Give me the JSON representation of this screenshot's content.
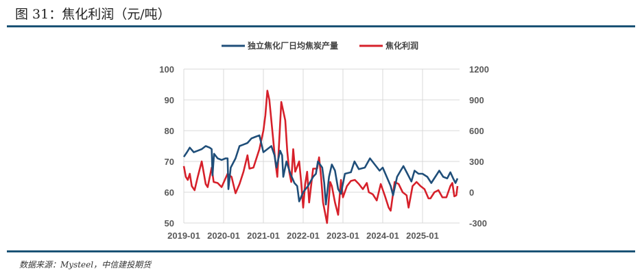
{
  "title": "图 31：焦化利润（元/吨）",
  "source": "数据来源：Mysteel，中信建投期货",
  "colors": {
    "production": "#1f4e79",
    "profit": "#d6202a",
    "rule": "#1a5275"
  },
  "chart_data": {
    "type": "line",
    "title": "焦化利润（元/吨）",
    "x_ticks": [
      "2019-01",
      "2020-01",
      "2021-01",
      "2022-01",
      "2023-01",
      "2024-01",
      "2025-01"
    ],
    "y_left": {
      "range": [
        50,
        100
      ],
      "ticks": [
        "100",
        "90",
        "80",
        "70",
        "60",
        "50"
      ]
    },
    "y_right": {
      "range": [
        -300,
        1200
      ],
      "ticks": [
        "1200",
        "900",
        "600",
        "300",
        "0",
        "-300"
      ]
    },
    "legend_position": "top-center",
    "grid": true,
    "series": [
      {
        "name": "独立焦化厂日均焦炭产量",
        "axis": "left",
        "x": [
          2019.0,
          2019.08,
          2019.15,
          2019.25,
          2019.35,
          2019.45,
          2019.55,
          2019.65,
          2019.7,
          2019.72,
          2019.76,
          2019.85,
          2019.95,
          2020.05,
          2020.1,
          2020.12,
          2020.18,
          2020.3,
          2020.4,
          2020.5,
          2020.6,
          2020.7,
          2020.8,
          2020.9,
          2021.0,
          2021.1,
          2021.2,
          2021.28,
          2021.33,
          2021.42,
          2021.47,
          2021.5,
          2021.58,
          2021.68,
          2021.78,
          2021.85,
          2021.9,
          2022.0,
          2022.12,
          2022.25,
          2022.32,
          2022.37,
          2022.48,
          2022.53,
          2022.57,
          2022.65,
          2022.72,
          2022.8,
          2022.88,
          2022.95,
          2023.05,
          2023.2,
          2023.29,
          2023.4,
          2023.55,
          2023.68,
          2023.8,
          2023.92,
          2024.0,
          2024.1,
          2024.2,
          2024.26,
          2024.36,
          2024.45,
          2024.52,
          2024.62,
          2024.72,
          2024.8,
          2024.9,
          2025.0,
          2025.12,
          2025.22,
          2025.32,
          2025.42,
          2025.52,
          2025.62,
          2025.7,
          2025.77,
          2025.83,
          2025.88
        ],
        "values": [
          71.5,
          73,
          74.5,
          73,
          73.5,
          74,
          75,
          74.5,
          74,
          65.5,
          72.5,
          71,
          70.5,
          71,
          71,
          61,
          68,
          71,
          75,
          75.5,
          76,
          77.5,
          78,
          78.5,
          73,
          74,
          75,
          72,
          68,
          73.5,
          72,
          65,
          70,
          66,
          63,
          62,
          57,
          60,
          62,
          65,
          66,
          70,
          68,
          63,
          56,
          65,
          69,
          67,
          61,
          59.5,
          66,
          66.5,
          70,
          67.5,
          68,
          71,
          69,
          67,
          68,
          65,
          62,
          59,
          65,
          67,
          68.5,
          66,
          63.5,
          67,
          66,
          66,
          65,
          63,
          65,
          67,
          65,
          64.5,
          66.5,
          64.5,
          63,
          64.5
        ]
      },
      {
        "name": "焦化利润",
        "axis": "right",
        "x": [
          2019.0,
          2019.05,
          2019.1,
          2019.15,
          2019.2,
          2019.27,
          2019.35,
          2019.45,
          2019.55,
          2019.6,
          2019.7,
          2019.75,
          2019.85,
          2019.95,
          2020.1,
          2020.2,
          2020.3,
          2020.4,
          2020.5,
          2020.6,
          2020.65,
          2020.75,
          2020.9,
          2021.0,
          2021.05,
          2021.1,
          2021.15,
          2021.25,
          2021.3,
          2021.35,
          2021.45,
          2021.55,
          2021.6,
          2021.65,
          2021.7,
          2021.75,
          2021.8,
          2021.9,
          2021.95,
          2022.0,
          2022.05,
          2022.1,
          2022.15,
          2022.25,
          2022.35,
          2022.4,
          2022.45,
          2022.5,
          2022.55,
          2022.6,
          2022.68,
          2022.72,
          2022.8,
          2022.88,
          2022.95,
          2023.0,
          2023.1,
          2023.2,
          2023.3,
          2023.4,
          2023.5,
          2023.6,
          2023.65,
          2023.75,
          2023.85,
          2023.95,
          2024.05,
          2024.15,
          2024.2,
          2024.3,
          2024.4,
          2024.5,
          2024.6,
          2024.65,
          2024.75,
          2024.85,
          2024.95,
          2025.05,
          2025.15,
          2025.2,
          2025.3,
          2025.4,
          2025.5,
          2025.6,
          2025.7,
          2025.75,
          2025.8,
          2025.85,
          2025.88
        ],
        "values": [
          255,
          150,
          120,
          180,
          60,
          20,
          150,
          300,
          80,
          50,
          240,
          100,
          90,
          50,
          180,
          150,
          -10,
          80,
          200,
          360,
          230,
          240,
          420,
          600,
          750,
          990,
          900,
          500,
          300,
          150,
          880,
          700,
          400,
          200,
          100,
          420,
          200,
          300,
          100,
          -150,
          80,
          200,
          -100,
          230,
          230,
          340,
          150,
          -100,
          -200,
          -300,
          100,
          60,
          -100,
          -220,
          120,
          -50,
          60,
          110,
          120,
          80,
          30,
          90,
          0,
          -20,
          -80,
          80,
          -30,
          -150,
          -180,
          100,
          80,
          0,
          -30,
          -150,
          60,
          100,
          60,
          30,
          -60,
          -60,
          0,
          20,
          -50,
          -50,
          60,
          90,
          -40,
          -30,
          60
        ]
      }
    ]
  }
}
